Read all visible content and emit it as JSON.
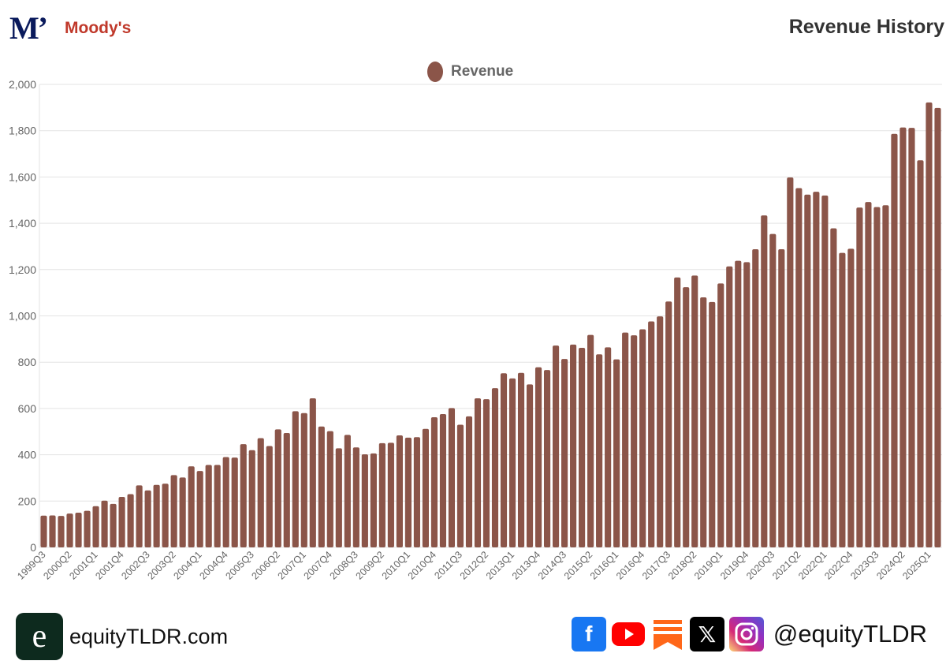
{
  "header": {
    "logo_text": "M’",
    "brand": "Moody's",
    "title": "Revenue History"
  },
  "legend": {
    "label": "Revenue",
    "color": "#8B5549"
  },
  "footer": {
    "site": "equityTLDR.com",
    "handle": "@equityTLDR",
    "logo_letter": "e",
    "icons": [
      "facebook-icon",
      "youtube-icon",
      "substack-icon",
      "x-icon",
      "instagram-icon"
    ]
  },
  "chart_data": {
    "type": "bar",
    "title": "Revenue History",
    "xlabel": "",
    "ylabel": "",
    "ylim": [
      0,
      2000
    ],
    "yticks": [
      "0",
      "200",
      "400",
      "600",
      "800",
      "1,000",
      "1,200",
      "1,400",
      "1,600",
      "1,800",
      "2,000"
    ],
    "grid": true,
    "legend_position": "top-center",
    "categories": [
      "1999Q3",
      "1999Q4",
      "2000Q1",
      "2000Q2",
      "2000Q3",
      "2000Q4",
      "2001Q1",
      "2001Q2",
      "2001Q3",
      "2001Q4",
      "2002Q1",
      "2002Q2",
      "2002Q3",
      "2002Q4",
      "2003Q1",
      "2003Q2",
      "2003Q3",
      "2003Q4",
      "2004Q1",
      "2004Q2",
      "2004Q3",
      "2004Q4",
      "2005Q1",
      "2005Q2",
      "2005Q3",
      "2005Q4",
      "2006Q1",
      "2006Q2",
      "2006Q3",
      "2006Q4",
      "2007Q1",
      "2007Q2",
      "2007Q3",
      "2007Q4",
      "2008Q1",
      "2008Q2",
      "2008Q3",
      "2008Q4",
      "2009Q1",
      "2009Q2",
      "2009Q3",
      "2009Q4",
      "2010Q1",
      "2010Q2",
      "2010Q3",
      "2010Q4",
      "2011Q1",
      "2011Q2",
      "2011Q3",
      "2011Q4",
      "2012Q1",
      "2012Q2",
      "2012Q3",
      "2012Q4",
      "2013Q1",
      "2013Q2",
      "2013Q3",
      "2013Q4",
      "2014Q1",
      "2014Q2",
      "2014Q3",
      "2014Q4",
      "2015Q1",
      "2015Q2",
      "2015Q3",
      "2015Q4",
      "2016Q1",
      "2016Q2",
      "2016Q3",
      "2016Q4",
      "2017Q1",
      "2017Q2",
      "2017Q3",
      "2017Q4",
      "2018Q1",
      "2018Q2",
      "2018Q3",
      "2018Q4",
      "2019Q1",
      "2019Q2",
      "2019Q3",
      "2019Q4",
      "2020Q1",
      "2020Q2",
      "2020Q3",
      "2020Q4",
      "2021Q1",
      "2021Q2",
      "2021Q3",
      "2021Q4",
      "2022Q1",
      "2022Q2",
      "2022Q3",
      "2022Q4",
      "2023Q1",
      "2023Q2",
      "2023Q3",
      "2023Q4",
      "2024Q1",
      "2024Q2",
      "2024Q3",
      "2024Q4",
      "2025Q1",
      "2025Q2"
    ],
    "series": [
      {
        "name": "Revenue",
        "values": [
          137,
          138,
          136,
          146,
          150,
          158,
          178,
          202,
          188,
          218,
          230,
          268,
          246,
          270,
          275,
          312,
          302,
          350,
          330,
          356,
          356,
          390,
          388,
          446,
          420,
          472,
          438,
          510,
          494,
          588,
          580,
          644,
          522,
          502,
          428,
          486,
          432,
          402,
          406,
          450,
          452,
          484,
          474,
          476,
          512,
          562,
          576,
          602,
          530,
          566,
          644,
          640,
          688,
          752,
          730,
          754,
          704,
          778,
          766,
          872,
          814,
          876,
          862,
          918,
          834,
          864,
          812,
          928,
          916,
          942,
          976,
          998,
          1062,
          1166,
          1124,
          1174,
          1080,
          1060,
          1140,
          1214,
          1238,
          1232,
          1288,
          1434,
          1354,
          1288,
          1598,
          1552,
          1524,
          1536,
          1520,
          1378,
          1272,
          1290,
          1468,
          1492,
          1470,
          1478,
          1786,
          1814,
          1812,
          1672,
          1922,
          1898
        ]
      }
    ],
    "xtick_every": 3
  }
}
